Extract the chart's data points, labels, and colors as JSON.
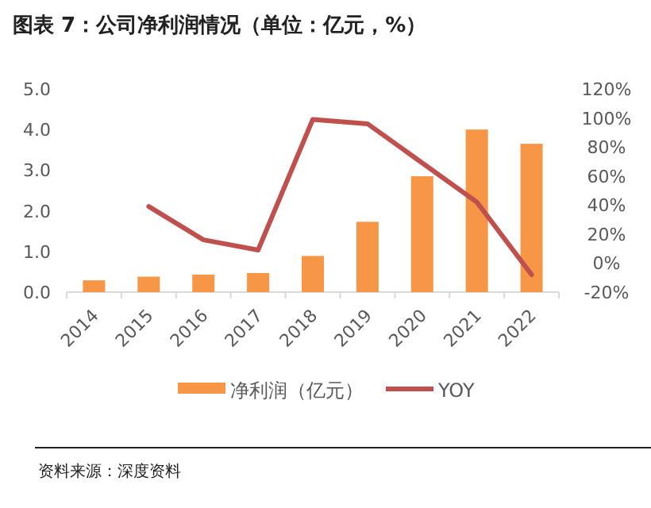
{
  "chart_data": {
    "type": "bar",
    "title": "图表 7：公司净利润情况（单位：亿元，%）",
    "categories": [
      "2014",
      "2015",
      "2016",
      "2017",
      "2018",
      "2019",
      "2020",
      "2021",
      "2022"
    ],
    "series": [
      {
        "name": "净利润（亿元）",
        "color": "#f79646",
        "values": [
          0.29,
          0.38,
          0.43,
          0.47,
          0.89,
          1.73,
          2.85,
          4.0,
          3.65
        ]
      },
      {
        "name": "YOY",
        "type": "line",
        "axis": "y2",
        "color": "#c0504d",
        "values": [
          null,
          39,
          16,
          9,
          99,
          96,
          69,
          42,
          -8
        ]
      }
    ],
    "ylim": [
      0,
      5
    ],
    "yticks": [
      {
        "value": 0,
        "label": "0.0"
      },
      {
        "value": 1,
        "label": "1.0"
      },
      {
        "value": 2,
        "label": "2.0"
      },
      {
        "value": 3,
        "label": "3.0"
      },
      {
        "value": 4,
        "label": "4.0"
      },
      {
        "value": 5,
        "label": "5.0"
      }
    ],
    "y2lim": [
      -20,
      120
    ],
    "y2ticks": [
      {
        "value": -20,
        "label": "-20%"
      },
      {
        "value": 0,
        "label": "0%"
      },
      {
        "value": 20,
        "label": "20%"
      },
      {
        "value": 40,
        "label": "40%"
      },
      {
        "value": 60,
        "label": "60%"
      },
      {
        "value": 80,
        "label": "80%"
      },
      {
        "value": 100,
        "label": "100%"
      },
      {
        "value": 120,
        "label": "120%"
      }
    ],
    "legend": "bottom",
    "grid": false,
    "annotations": [
      "资料来源：深度资料"
    ]
  }
}
